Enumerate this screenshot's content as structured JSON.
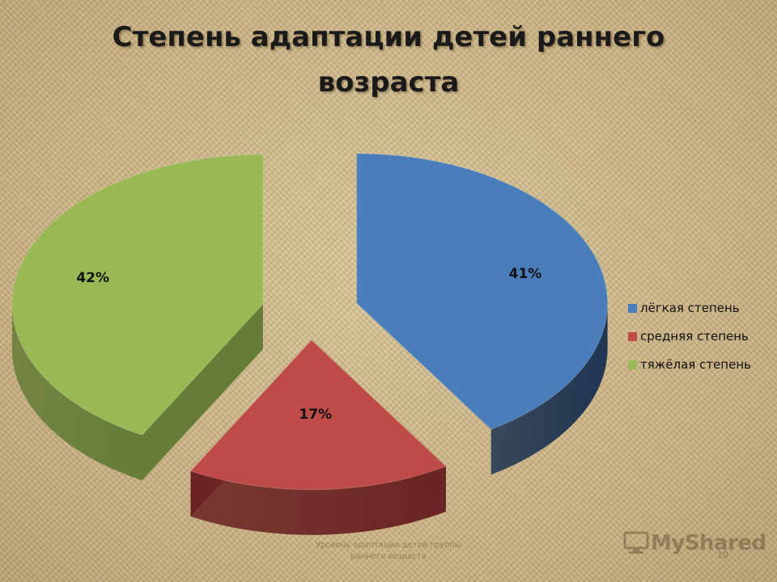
{
  "chart_data": {
    "type": "pie",
    "title_lines": [
      "Степень адаптации детей раннего",
      "возраста"
    ],
    "categories": [
      "лёгкая степень",
      "средняя степень",
      "тяжёлая степень"
    ],
    "values": [
      41,
      17,
      42
    ],
    "value_labels": [
      "41%",
      "17%",
      "42%"
    ],
    "colors": [
      "#4a7ebb",
      "#be4b48",
      "#98b954"
    ],
    "side_colors": [
      "#1f3552",
      "#6b2423",
      "#667d38"
    ],
    "legend_position": "right",
    "exploded": true,
    "three_d": true
  },
  "footer": {
    "caption_lines": [
      "Уровень адаптации детей группы",
      "раннего возраста"
    ],
    "page_number": "10"
  },
  "logo": {
    "text": "MyShared",
    "icon": "monitor-icon"
  }
}
